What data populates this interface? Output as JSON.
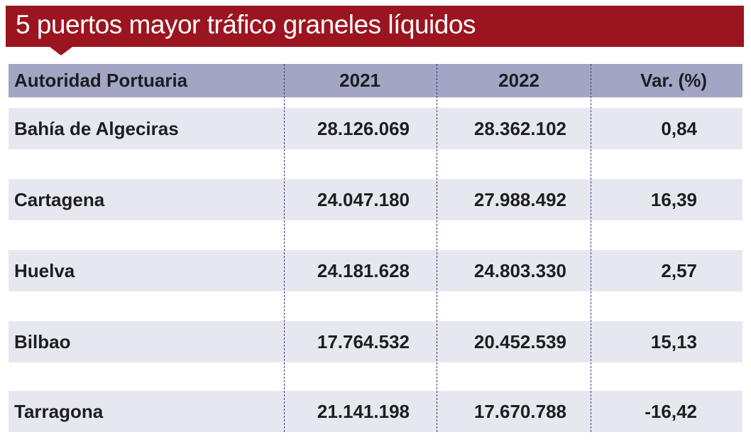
{
  "title": "5 puertos mayor tráfico graneles líquidos",
  "colors": {
    "title_bar": "#9b1520",
    "header_bg": "#a3a5c4",
    "row_bg": "#e7e7f0"
  },
  "table": {
    "headers": [
      "Autoridad Portuaria",
      "2021",
      "2022",
      "Var. (%)"
    ],
    "rows": [
      [
        "Bahía de Algeciras",
        "28.126.069",
        "28.362.102",
        "0,84"
      ],
      [
        "Cartagena",
        "24.047.180",
        "27.988.492",
        "16,39"
      ],
      [
        "Huelva",
        "24.181.628",
        "24.803.330",
        "2,57"
      ],
      [
        "Bilbao",
        "17.764.532",
        "20.452.539",
        "15,13"
      ],
      [
        "Tarragona",
        "21.141.198",
        "17.670.788",
        "-16,42"
      ]
    ]
  }
}
